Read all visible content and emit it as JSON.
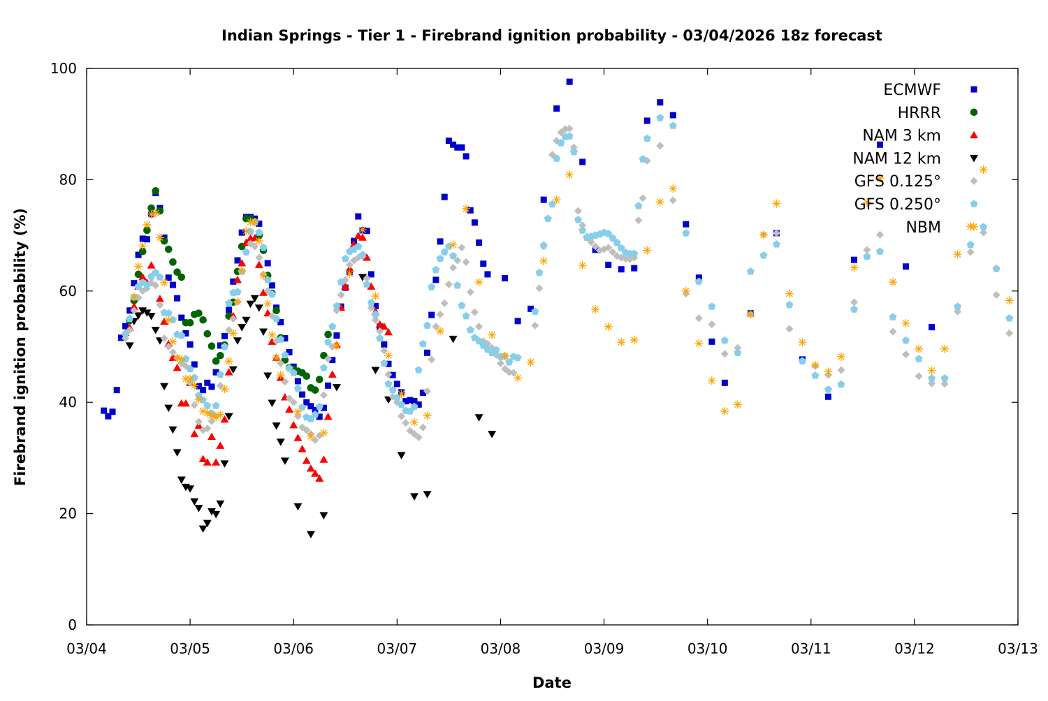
{
  "chart_data": {
    "type": "scatter",
    "title": "Indian Springs - Tier 1 - Firebrand ignition probability - 03/04/2026 18z forecast",
    "xlabel": "Date",
    "ylabel": "Firebrand ignition probability (%)",
    "xlim": [
      "03/04 00:00",
      "03/13 00:00"
    ],
    "ylim": [
      0,
      100
    ],
    "x_ticks": [
      "03/04",
      "03/05",
      "03/06",
      "03/07",
      "03/08",
      "03/09",
      "03/10",
      "03/11",
      "03/12",
      "03/13"
    ],
    "y_ticks": [
      "0",
      "20",
      "40",
      "60",
      "80",
      "100"
    ],
    "grid": false,
    "legend_position": "top-right",
    "series": [
      {
        "name": "ECMWF",
        "marker": "square",
        "color": "#0000cc",
        "runs": [
          {
            "start": "03/04 04:00",
            "interval_hours": 1,
            "values": [
              38.5,
              37.5,
              38.3,
              42.2,
              51.6,
              53.7,
              56.5,
              61.4,
              66.5,
              69.4,
              69.3,
              73.8,
              77.6,
              74.9,
              69.6,
              62.4,
              61.1,
              58.7,
              55.2,
              52.4,
              50.4,
              46.8,
              42.9,
              42.2,
              43.5,
              42.8,
              45.4,
              50.2,
              51.9,
              56.6,
              61.7,
              65.5,
              70.5,
              73.3,
              73.3,
              73.0,
              72.1,
              67.6,
              65.0,
              61.0,
              57.0,
              54.4,
              51.5,
              49.0,
              46.4,
              43.8,
              41.4,
              40.0,
              39.3,
              38.6,
              37.4,
              39.0,
              43.0,
              47.6,
              52.0,
              57.2,
              60.6,
              63.4,
              69.0,
              73.4,
              70.9,
              70.8,
              63.0,
              57.3,
              53.6,
              50.4,
              46.9,
              44.9,
              43.3,
              41.8,
              40.2,
              40.4,
              40.2,
              39.6,
              41.7,
              48.9,
              55.7,
              62.0,
              68.9,
              76.9,
              87.0,
              86.3,
              85.8,
              85.8,
              84.2,
              74.5,
              72.3,
              68.7,
              64.9,
              63.0
            ]
          },
          {
            "start": "03/08 01:00",
            "interval_hours": 3,
            "values": [
              62.3,
              54.6,
              56.8,
              76.4,
              92.8,
              97.6,
              83.2,
              67.4,
              64.7,
              63.9,
              64.1,
              90.6,
              93.9,
              91.6,
              72.0,
              62.4,
              50.9,
              43.5
            ]
          },
          {
            "start": "03/10 10:00",
            "interval_hours": 6,
            "values": [
              56.0,
              70.4,
              47.7,
              41.0,
              65.6,
              86.3,
              64.4,
              53.5
            ]
          }
        ]
      },
      {
        "name": "HRRR",
        "marker": "circle",
        "color": "#006400",
        "runs": [
          {
            "start": "03/04 10:00",
            "interval_hours": 1,
            "values": [
              54.7,
              58.3,
              63.0,
              67.1,
              70.9,
              74.9,
              78.0,
              74.4,
              69.0,
              67.5,
              65.2,
              63.4,
              62.5,
              54.3,
              54.3,
              55.8,
              56.0,
              54.8,
              52.3,
              50.1,
              47.4,
              48.4,
              50.3,
              55.5,
              58.0,
              63.5,
              68.0,
              73.0,
              73.0,
              72.5,
              70.0,
              67.3,
              62.8,
              59.6,
              56.5,
              51.6,
              47.6,
              46.2,
              45.9,
              45.6,
              45.3,
              44.7,
              42.6,
              42.2,
              44.1,
              48.4,
              52.2
            ]
          }
        ]
      },
      {
        "name": "NAM 3 km",
        "marker": "triangle-up",
        "color": "#ff0000",
        "runs": [
          {
            "start": "03/04 09:00",
            "interval_hours": 1,
            "values": [
              52.5,
              53.4,
              57.2,
              60.8,
              62.5,
              61.5,
              64.6,
              63.3,
              58.6,
              54.5,
              50.5,
              48.0,
              46.2,
              39.8,
              39.8,
              43.5,
              34.3,
              35.8,
              29.8,
              29.2,
              33.8,
              29.2,
              32.2,
              36.9,
              45.4,
              55.5,
              62.0,
              65.0,
              68.7,
              69.5,
              69.5,
              64.7,
              59.7,
              56.0,
              50.9,
              48.0,
              44.4,
              40.9,
              38.7,
              35.9,
              33.6,
              31.6,
              29.5,
              28.1,
              27.2,
              26.3,
              29.7,
              37.4,
              45.0,
              50.3,
              57.0,
              60.8,
              64.0,
              68.4,
              69.9,
              69.6,
              66.0,
              60.8,
              56.3,
              54.0,
              53.6,
              52.6
            ]
          }
        ]
      },
      {
        "name": "NAM 12 km",
        "marker": "triangle-down",
        "color": "#000000",
        "runs": [
          {
            "start": "03/04 10:00",
            "interval_hours": 1,
            "values": [
              50.2,
              54.6,
              55.6,
              56.5,
              56.1,
              55.5,
              53.0,
              51.1,
              42.9,
              39.0,
              35.1,
              31.0,
              26.1,
              24.8,
              24.5,
              22.2,
              21.0,
              17.3,
              18.3,
              20.4,
              19.9,
              21.8,
              29.0,
              37.5,
              45.9,
              51.1,
              53.5,
              54.8,
              57.7,
              58.7,
              57.0,
              52.7,
              44.8,
              39.9,
              35.8,
              32.9,
              29.5
            ]
          },
          {
            "start": "03/06 01:00",
            "interval_hours": 3,
            "values": [
              21.3,
              16.3,
              19.7,
              42.7,
              null,
              62.5,
              45.8,
              40.5,
              30.5,
              23.1,
              23.5,
              null,
              51.4,
              null,
              37.3,
              34.3
            ]
          }
        ]
      },
      {
        "name": "GFS 0.125°",
        "marker": "diamond",
        "color": "#bebebe",
        "runs": [
          {
            "start": "03/04 09:00",
            "interval_hours": 1,
            "values": [
              51.5,
              53.0,
              56.5,
              58.8,
              60.0,
              60.5,
              61.5,
              61.0,
              57.5,
              51.5,
              50.0,
              49.0,
              48.0,
              47.0,
              46.5,
              43.5,
              39.5,
              36.5,
              35.0,
              35.3,
              36.6,
              37.5,
              43.0,
              50.0,
              53.0,
              55.0,
              58.0,
              63.5,
              67.0,
              68.5,
              68.0,
              66.0,
              63.0,
              60.0,
              55.5,
              51.0,
              47.0,
              43.7,
              40.7,
              40.0,
              37.5,
              35.5,
              35.0,
              34.3,
              33.2,
              34.0,
              41.3,
              47.8,
              50.0,
              56.5,
              59.3,
              62.0,
              64.7,
              65.5,
              66.0,
              66.2,
              62.3,
              57.0,
              54.8,
              52.8,
              49.3,
              45.0,
              41.0,
              40.0,
              37.5,
              36.3,
              34.9,
              34.3,
              33.7,
              35.5,
              42.0,
              47.7,
              53.6,
              55.8,
              57.8,
              61.2,
              64.2,
              65.5,
              67.8,
              65.2,
              59.8,
              56.2,
              53.6,
              51.0,
              50.5,
              49.8,
              48.5,
              47.0,
              46.0,
              45.4,
              45.3
            ]
          },
          {
            "start": "03/08 08:00",
            "interval_hours": 1,
            "values": [
              53.8,
              60.5,
              68.0,
              73.0,
              84.5,
              87.0,
              88.5,
              89.1,
              89.2,
              85.8,
              74.4,
              71.8,
              69.8,
              68.8,
              68.0,
              67.3,
              67.5,
              67.8,
              67.0,
              66.3,
              66.0,
              65.8,
              65.7,
              66.0,
              72.7,
              76.7,
              83.4
            ]
          },
          {
            "start": "03/09 13:00",
            "interval_hours": 3,
            "values": [
              86.1,
              76.3,
              59.5,
              55.1,
              54.0,
              48.7,
              49.8,
              55.8,
              70.1,
              70.4,
              53.2,
              47.4,
              46.5,
              44.9,
              45.8,
              58.0,
              67.4,
              70.1,
              52.7,
              48.6,
              44.7,
              43.4,
              43.3,
              56.3,
              67.0,
              70.5,
              59.3,
              52.4
            ]
          }
        ]
      },
      {
        "name": "GFS 0.250°",
        "marker": "pentagon",
        "color": "#87ceeb",
        "runs": [
          {
            "start": "03/04 09:00",
            "interval_hours": 1,
            "values": [
              52.3,
              55.0,
              58.9,
              60.8,
              61.5,
              61.0,
              62.6,
              63.3,
              62.5,
              56.1,
              56.0,
              54.8,
              52.2,
              52.0,
              47.8,
              46.0,
              44.4,
              41.2,
              40.4,
              39.4,
              38.0,
              39.4,
              45.0,
              50.0,
              57.8,
              59.7,
              59.8,
              63.5,
              67.0,
              70.7,
              72.4,
              70.5,
              67.8,
              62.0,
              59.4,
              55.0,
              51.3,
              48.5,
              46.1,
              45.3,
              42.5,
              39.1,
              37.3,
              37.0,
              37.8,
              39.2,
              46.2,
              50.8,
              53.6,
              57.3,
              61.6,
              65.8,
              67.1,
              67.5,
              68.0,
              66.5,
              61.2,
              57.9,
              55.8,
              51.5,
              47.0,
              43.3,
              42.2,
              40.8,
              39.6,
              38.5,
              38.4,
              39.2,
              45.8,
              50.5,
              53.8,
              60.7,
              63.8,
              65.8,
              67.0,
              68.0,
              66.3,
              61.0,
              57.4,
              55.5,
              53.0,
              51.6,
              51.0,
              50.2,
              49.5,
              48.9,
              49.4,
              48.2,
              48.3,
              47.2,
              48.2,
              48.0
            ]
          },
          {
            "start": "03/08 08:00",
            "interval_hours": 1,
            "values": [
              56.3,
              63.3,
              68.2,
              73.0,
              75.6,
              83.8,
              86.6,
              87.7,
              87.8,
              85.0,
              72.8,
              70.9,
              69.6,
              69.8,
              70.0,
              70.2,
              70.5,
              70.3,
              69.5,
              68.7,
              67.7,
              66.9,
              66.7,
              66.7,
              75.3,
              83.7,
              87.4
            ]
          },
          {
            "start": "03/09 13:00",
            "interval_hours": 3,
            "values": [
              91.1,
              89.7,
              70.4,
              61.7,
              57.2,
              51.1,
              48.9,
              63.5,
              66.4,
              68.4,
              57.5,
              47.4,
              44.8,
              42.3,
              43.2,
              56.7,
              66.2,
              67.1,
              55.3,
              51.1,
              47.8,
              44.3,
              44.3,
              57.2,
              68.3,
              71.5,
              64.0,
              55.1
            ]
          }
        ]
      },
      {
        "name": "NBM",
        "marker": "asterisk",
        "color": "#ffa500",
        "runs": [
          {
            "start": "03/04 11:00",
            "interval_hours": 1,
            "values": [
              58.9,
              64.4,
              68.1,
              71.9,
              73.8,
              74.0,
              69.6,
              61.5,
              54.8,
              50.9,
              48.0,
              47.7,
              44.2,
              44.2,
              43.0,
              40.5,
              38.4,
              38.1,
              37.6,
              37.4,
              37.8,
              42.4,
              47.4,
              52.4,
              58.1,
              63.6,
              70.8,
              72.4,
              72.4,
              69.0,
              62.7,
              57.7,
              52.1,
              48.0,
              44.9
            ]
          },
          {
            "start": "03/06 01:00",
            "interval_hours": 3,
            "values": [
              38.3,
              33.9,
              34.5,
              50.2,
              63.1,
              71.0,
              59.1,
              48.4,
              41.5,
              36.4,
              37.6,
              52.8,
              68.3,
              74.8,
              61.6,
              52.1,
              48.3,
              44.4,
              47.2,
              65.4,
              76.4,
              80.9,
              64.6,
              56.7,
              53.6,
              50.8,
              51.2,
              67.3,
              76.0,
              78.4,
              60.0,
              50.6,
              43.9,
              38.4,
              39.6,
              55.8,
              70.1,
              75.7,
              59.5,
              50.8,
              46.7,
              45.5,
              48.2,
              64.2,
              75.9,
              80.3,
              61.6,
              54.2,
              49.6,
              45.7,
              49.6,
              66.6,
              71.6,
              81.8,
              null,
              58.3
            ]
          }
        ]
      }
    ]
  }
}
